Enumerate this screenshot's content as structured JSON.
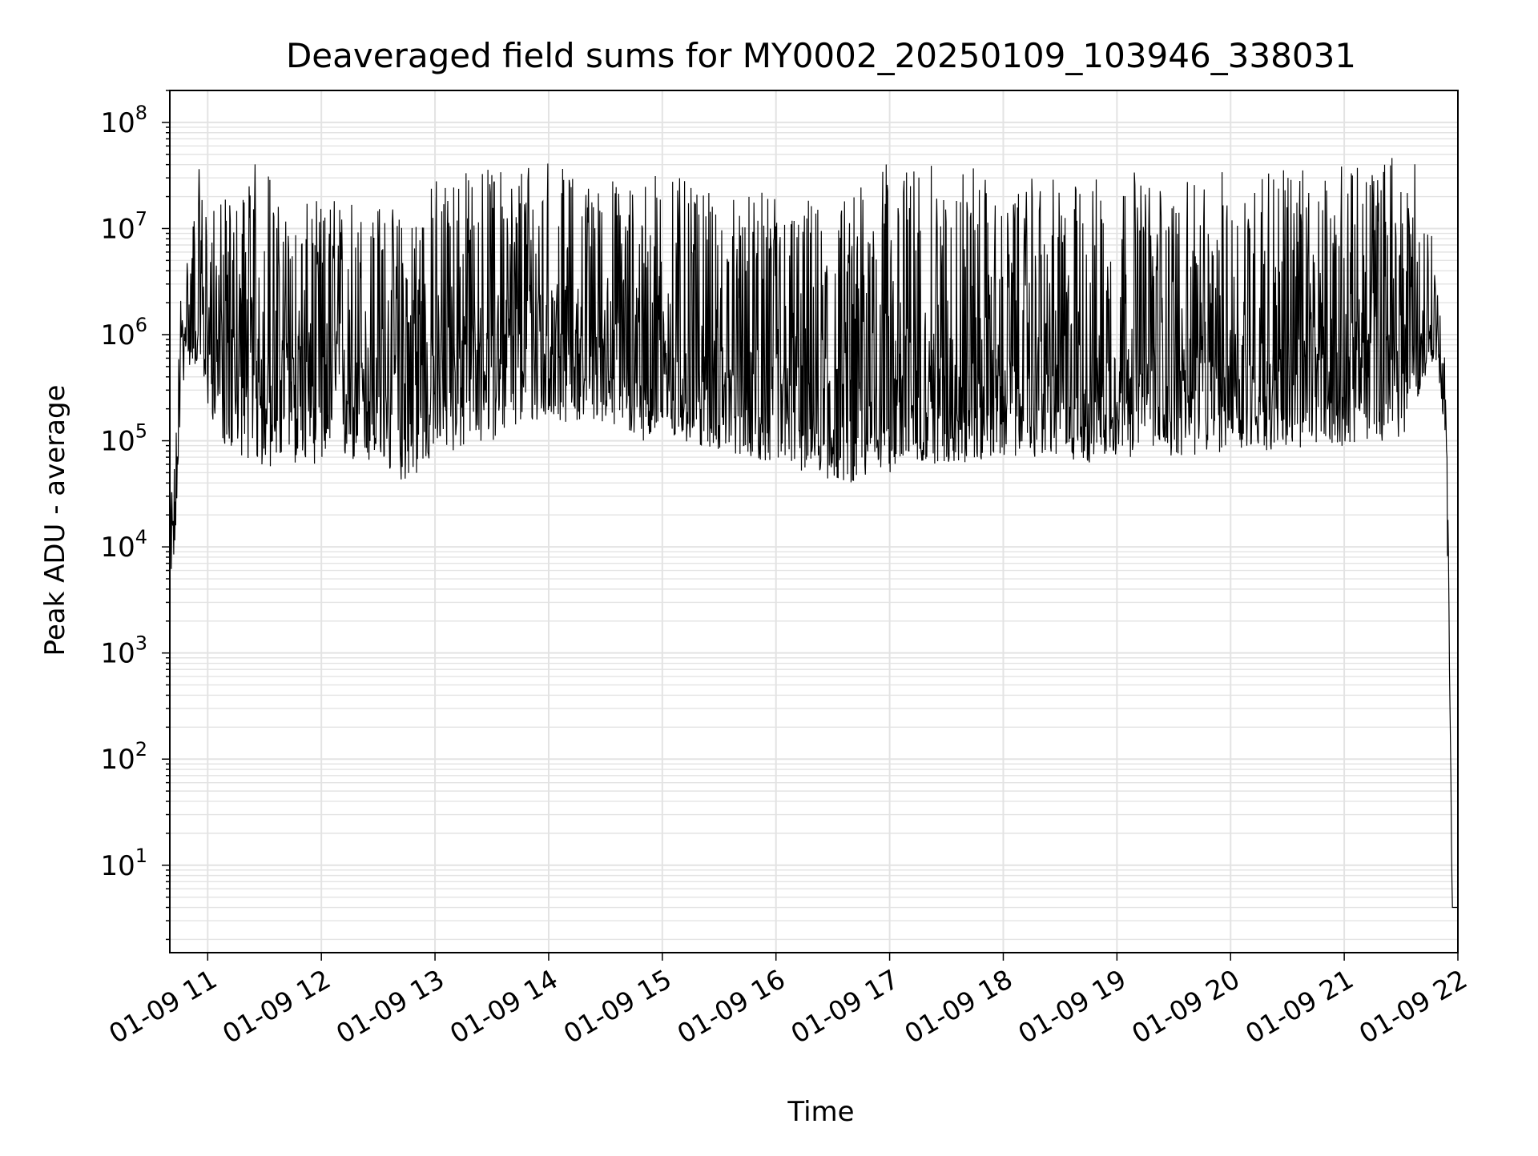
{
  "chart_data": {
    "type": "line",
    "title": "Deaveraged field sums for MY0002_20250109_103946_338031",
    "xlabel": "Time",
    "ylabel": "Peak ADU - average",
    "x_axis": {
      "type": "time",
      "start": "2025-01-09 10:40",
      "end": "2025-01-09 22:00",
      "ticks": [
        "01-09 11",
        "01-09 12",
        "01-09 13",
        "01-09 14",
        "01-09 15",
        "01-09 16",
        "01-09 17",
        "01-09 18",
        "01-09 19",
        "01-09 20",
        "01-09 21",
        "01-09 22"
      ]
    },
    "y_axis": {
      "scale": "log",
      "ylim": [
        1.5,
        200000000
      ],
      "ticks": [
        {
          "base": "10",
          "exp": "1",
          "value": 10
        },
        {
          "base": "10",
          "exp": "2",
          "value": 100
        },
        {
          "base": "10",
          "exp": "3",
          "value": 1000
        },
        {
          "base": "10",
          "exp": "4",
          "value": 10000
        },
        {
          "base": "10",
          "exp": "5",
          "value": 100000
        },
        {
          "base": "10",
          "exp": "6",
          "value": 1000000
        },
        {
          "base": "10",
          "exp": "7",
          "value": 10000000
        },
        {
          "base": "10",
          "exp": "8",
          "value": 100000000
        }
      ]
    },
    "grid": true,
    "grid_color": "#e3e3e3",
    "line_color": "#000000",
    "series": [
      {
        "x": [
          "10:40",
          "10:43",
          "10:46",
          "10:50",
          "10:55",
          "11:00",
          "11:10",
          "11:20",
          "11:30",
          "11:37",
          "11:45",
          "12:00",
          "12:15",
          "12:30",
          "12:40",
          "12:50",
          "13:00",
          "13:15",
          "13:30",
          "13:45",
          "14:00",
          "14:15",
          "14:30",
          "14:45",
          "15:00",
          "15:15",
          "15:30",
          "15:45",
          "16:00",
          "16:15",
          "16:30",
          "16:45",
          "17:00",
          "17:15",
          "17:30",
          "17:45",
          "18:00",
          "18:15",
          "18:30",
          "18:45",
          "19:00",
          "19:15",
          "19:30",
          "19:45",
          "20:00",
          "20:15",
          "20:30",
          "20:45",
          "21:00",
          "21:15",
          "21:30",
          "21:45",
          "21:50",
          "21:53",
          "21:55",
          "21:57",
          "21:58",
          "22:00"
        ],
        "low": [
          5000,
          9000,
          300000,
          500000,
          500000,
          200000,
          80000,
          70000,
          50000,
          60000,
          60000,
          60000,
          60000,
          55000,
          40000,
          45000,
          70000,
          80000,
          100000,
          130000,
          150000,
          150000,
          150000,
          100000,
          100000,
          90000,
          80000,
          70000,
          60000,
          50000,
          40000,
          40000,
          50000,
          60000,
          60000,
          60000,
          70000,
          70000,
          70000,
          60000,
          70000,
          70000,
          70000,
          70000,
          80000,
          80000,
          80000,
          80000,
          90000,
          100000,
          100000,
          500000,
          400000,
          100000,
          3000,
          4,
          4,
          4
        ],
        "median": [
          10000,
          20000,
          900000,
          1500000,
          1800000,
          1000000,
          800000,
          600000,
          500000,
          500000,
          600000,
          500000,
          500000,
          450000,
          400000,
          500000,
          600000,
          800000,
          900000,
          1000000,
          1000000,
          1000000,
          900000,
          700000,
          600000,
          500000,
          400000,
          350000,
          300000,
          300000,
          280000,
          300000,
          350000,
          400000,
          400000,
          400000,
          400000,
          400000,
          400000,
          400000,
          400000,
          420000,
          450000,
          450000,
          500000,
          500000,
          550000,
          600000,
          700000,
          800000,
          900000,
          1000000,
          800000,
          300000,
          10000,
          4,
          4,
          4
        ],
        "high": [
          30000,
          100000,
          4000000,
          8000000,
          40000000,
          15000000,
          20000000,
          30000000,
          70000000,
          20000000,
          15000000,
          20000000,
          25000000,
          20000000,
          15000000,
          30000000,
          30000000,
          40000000,
          40000000,
          50000000,
          50000000,
          30000000,
          30000000,
          30000000,
          45000000,
          25000000,
          20000000,
          20000000,
          25000000,
          20000000,
          15000000,
          30000000,
          45000000,
          40000000,
          40000000,
          45000000,
          15000000,
          30000000,
          30000000,
          30000000,
          40000000,
          35000000,
          30000000,
          25000000,
          40000000,
          50000000,
          50000000,
          30000000,
          40000000,
          40000000,
          80000000,
          20000000,
          2000000,
          600000,
          20000,
          4,
          4,
          4
        ]
      }
    ]
  }
}
